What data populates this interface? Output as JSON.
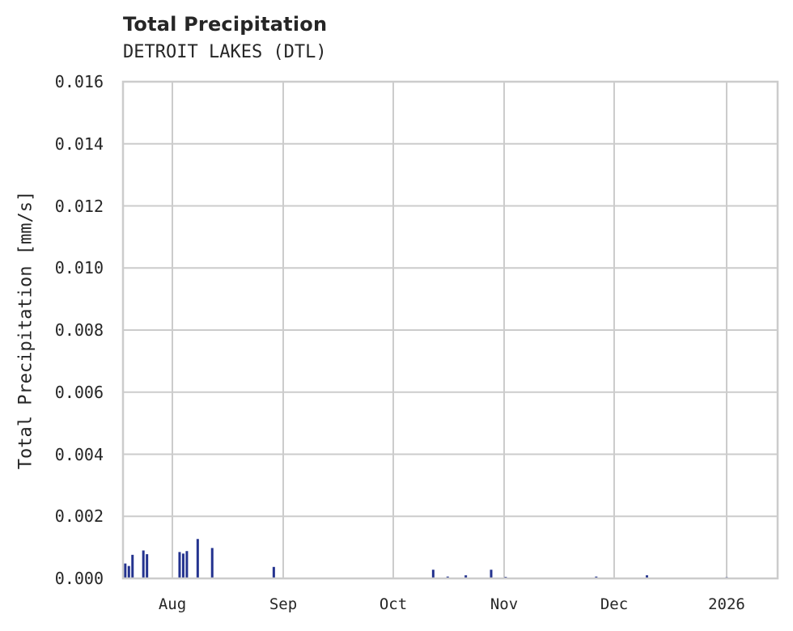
{
  "header": {
    "title": "Total Precipitation",
    "subtitle": "DETROIT LAKES (DTL)"
  },
  "axes": {
    "ylabel": "Total Precipitation [mm/s]",
    "yticks": [
      "0.016",
      "0.014",
      "0.012",
      "0.010",
      "0.008",
      "0.006",
      "0.004",
      "0.002",
      "0.000"
    ],
    "xticks": [
      "Aug",
      "Sep",
      "Oct",
      "Nov",
      "Dec",
      "2026"
    ]
  },
  "colors": {
    "bar": "#24338f",
    "grid": "#cccccc",
    "frame": "#cccccc",
    "text": "#262626"
  },
  "chart_data": {
    "type": "bar",
    "title": "Total Precipitation",
    "subtitle": "DETROIT LAKES (DTL)",
    "xlabel": "",
    "ylabel": "Total Precipitation [mm/s]",
    "ylim": [
      0,
      0.016
    ],
    "yticks": [
      0.0,
      0.002,
      0.004,
      0.006,
      0.008,
      0.01,
      0.012,
      0.014,
      0.016
    ],
    "xtick_labels": [
      "Aug",
      "Sep",
      "Oct",
      "Nov",
      "Dec",
      "2026"
    ],
    "grid": true,
    "legend": null,
    "series": [
      {
        "name": "Total Precipitation",
        "color": "#24338f",
        "x": [
          "2025-07-19",
          "2025-07-20",
          "2025-07-21",
          "2025-07-24",
          "2025-07-25",
          "2025-08-03",
          "2025-08-04",
          "2025-08-05",
          "2025-08-08",
          "2025-08-12",
          "2025-08-29",
          "2025-10-12",
          "2025-10-16",
          "2025-10-21",
          "2025-10-28",
          "2025-11-01",
          "2025-11-26",
          "2025-12-10",
          "2026-01-01"
        ],
        "values": [
          0.00048,
          0.0004,
          0.00076,
          0.0009,
          0.00078,
          0.00085,
          0.0008,
          0.00088,
          0.00127,
          0.00098,
          0.00037,
          0.00028,
          6e-05,
          0.0001,
          0.00028,
          5e-05,
          6e-05,
          0.0001,
          4e-05
        ]
      }
    ]
  }
}
